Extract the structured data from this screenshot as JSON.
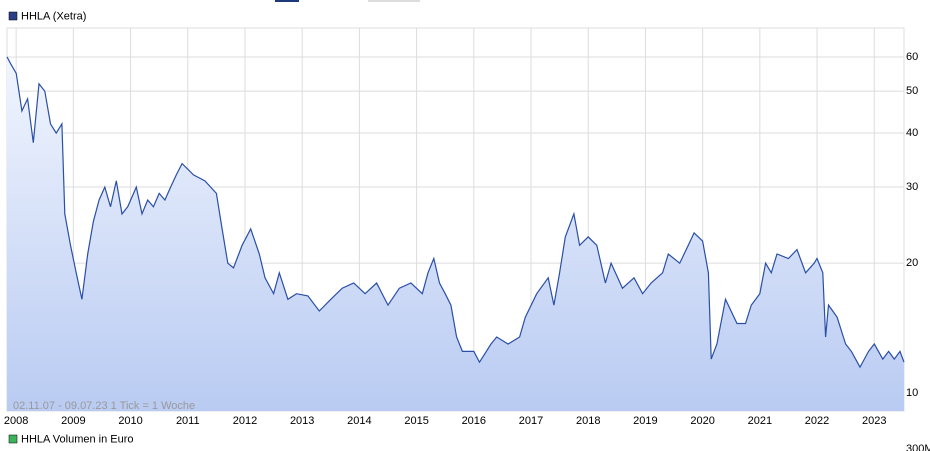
{
  "chart_data": {
    "type": "line",
    "legend": "HHLA (Xetra)",
    "annotation": "02.11.07 - 09.07.23   1 Tick = 1 Woche",
    "volume_legend": "HHLA Volumen in Euro",
    "volume_tick": "300M",
    "log_y": true,
    "grid": true,
    "xlim": [
      2007.84,
      2023.52
    ],
    "xticks": [
      2008,
      2009,
      2010,
      2011,
      2012,
      2013,
      2014,
      2015,
      2016,
      2017,
      2018,
      2019,
      2020,
      2021,
      2022,
      2023
    ],
    "ylim": [
      9.1,
      70
    ],
    "yticks": [
      10,
      20,
      30,
      40,
      50,
      60
    ],
    "x": [
      2007.84,
      2007.9,
      2008.0,
      2008.1,
      2008.2,
      2008.3,
      2008.4,
      2008.5,
      2008.6,
      2008.7,
      2008.8,
      2008.85,
      2008.95,
      2009.05,
      2009.15,
      2009.25,
      2009.35,
      2009.45,
      2009.55,
      2009.65,
      2009.75,
      2009.85,
      2009.95,
      2010.1,
      2010.2,
      2010.3,
      2010.4,
      2010.5,
      2010.6,
      2010.7,
      2010.8,
      2010.9,
      2011.0,
      2011.1,
      2011.3,
      2011.5,
      2011.6,
      2011.7,
      2011.8,
      2011.95,
      2012.1,
      2012.25,
      2012.35,
      2012.5,
      2012.6,
      2012.75,
      2012.9,
      2013.1,
      2013.3,
      2013.5,
      2013.7,
      2013.9,
      2014.1,
      2014.3,
      2014.5,
      2014.7,
      2014.9,
      2015.1,
      2015.2,
      2015.3,
      2015.4,
      2015.5,
      2015.6,
      2015.7,
      2015.8,
      2016.0,
      2016.1,
      2016.3,
      2016.4,
      2016.6,
      2016.8,
      2016.9,
      2017.1,
      2017.3,
      2017.4,
      2017.5,
      2017.6,
      2017.75,
      2017.85,
      2018.0,
      2018.15,
      2018.3,
      2018.4,
      2018.6,
      2018.8,
      2018.95,
      2019.1,
      2019.3,
      2019.4,
      2019.6,
      2019.75,
      2019.85,
      2020.0,
      2020.1,
      2020.15,
      2020.25,
      2020.4,
      2020.6,
      2020.75,
      2020.85,
      2021.0,
      2021.1,
      2021.2,
      2021.3,
      2021.5,
      2021.65,
      2021.8,
      2021.95,
      2022.0,
      2022.1,
      2022.15,
      2022.2,
      2022.35,
      2022.5,
      2022.6,
      2022.75,
      2022.9,
      2023.0,
      2023.15,
      2023.25,
      2023.35,
      2023.45,
      2023.52
    ],
    "series": [
      {
        "name": "HHLA (Xetra)",
        "color": "#2a4fa6",
        "values": [
          60,
          58,
          55,
          45,
          48,
          38,
          52,
          50,
          42,
          40,
          42,
          26,
          22,
          19,
          16.5,
          21,
          25,
          28,
          30,
          27,
          31,
          26,
          27,
          30,
          26,
          28,
          27,
          29,
          28,
          30,
          32,
          34,
          33,
          32,
          31,
          29,
          24,
          20,
          19.5,
          22,
          24,
          21,
          18.5,
          17,
          19,
          16.5,
          17,
          16.8,
          15.5,
          16.5,
          17.5,
          18,
          17,
          18,
          16,
          17.5,
          18,
          17,
          19,
          20.5,
          18,
          17,
          16,
          13.5,
          12.5,
          12.5,
          11.8,
          13,
          13.5,
          13,
          13.5,
          15,
          17,
          18.5,
          16,
          19,
          23,
          26,
          22,
          23,
          22,
          18,
          20,
          17.5,
          18.5,
          17,
          18,
          19,
          21,
          20,
          22,
          23.5,
          22.5,
          19,
          12,
          13,
          16.5,
          14.5,
          14.5,
          16,
          17,
          20,
          19,
          21,
          20.5,
          21.5,
          19,
          20,
          20.5,
          19,
          13.5,
          16,
          15,
          13,
          12.5,
          11.5,
          12.5,
          13,
          12,
          12.5,
          12,
          12.5,
          11.8
        ]
      }
    ]
  }
}
